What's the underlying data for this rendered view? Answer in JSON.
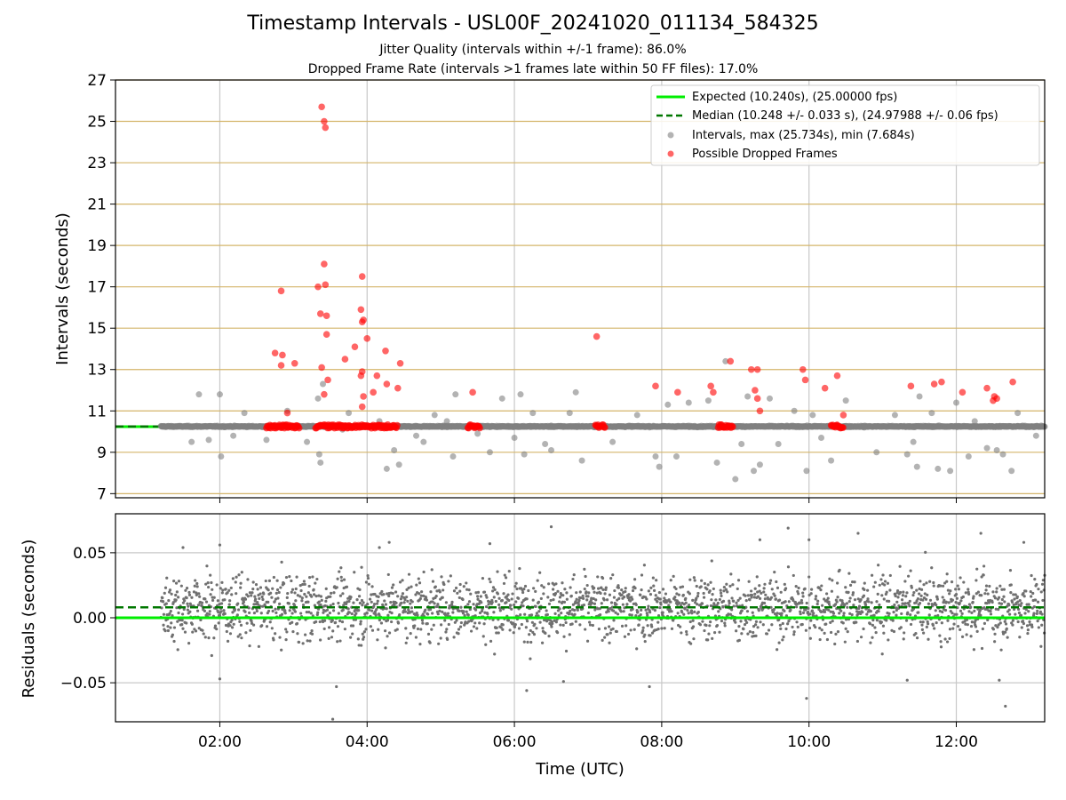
{
  "title": "Timestamp Intervals - USL00F_20241020_011134_584325",
  "subtitle_1": "Jitter Quality (intervals within +/-1 frame): 86.0%",
  "subtitle_2": "Dropped Frame Rate (intervals >1 frames late within 50 FF files): 17.0%",
  "colors": {
    "expected": "#00ee00",
    "median": "#007700",
    "intervals": "#808080",
    "dropped": "#ff0000",
    "hgrid_top": "#d4b56a",
    "vgrid": "#c8c8c8"
  },
  "chart_data": [
    {
      "type": "scatter",
      "ylabel": "Intervals (seconds)",
      "xlabel": "",
      "xlim": [
        "00:35",
        "13:12"
      ],
      "ylim": [
        6.8,
        27
      ],
      "yticks": [
        7,
        9,
        11,
        13,
        15,
        17,
        19,
        21,
        23,
        25,
        27
      ],
      "xticks": [
        "02:00",
        "04:00",
        "06:00",
        "08:00",
        "10:00",
        "12:00"
      ],
      "grid": "on",
      "legend_position": "top-right",
      "legend": [
        "Expected (10.240s), (25.00000 fps)",
        "Median (10.248 +/- 0.033 s), (24.97988 +/- 0.06 fps)",
        "Intervals, max (25.734s), min (7.684s)",
        "Possible Dropped Frames"
      ],
      "expected": 10.24,
      "median": 10.248,
      "series": [
        {
          "name": "Intervals, max (25.734s), min (7.684s)",
          "points": [
            [
              "01:43",
              11.8
            ],
            [
              "01:37",
              9.5
            ],
            [
              "01:51",
              9.6
            ],
            [
              "02:00",
              11.8
            ],
            [
              "02:01",
              8.8
            ],
            [
              "02:11",
              9.8
            ],
            [
              "02:20",
              10.9
            ],
            [
              "02:38",
              9.6
            ],
            [
              "02:55",
              11.0
            ],
            [
              "03:11",
              9.5
            ],
            [
              "03:20",
              11.6
            ],
            [
              "03:21",
              8.9
            ],
            [
              "03:22",
              8.5
            ],
            [
              "03:24",
              12.3
            ],
            [
              "03:40",
              10.1
            ],
            [
              "03:45",
              10.9
            ],
            [
              "04:10",
              10.5
            ],
            [
              "04:16",
              8.2
            ],
            [
              "04:22",
              9.1
            ],
            [
              "04:26",
              8.4
            ],
            [
              "04:40",
              9.8
            ],
            [
              "04:46",
              9.5
            ],
            [
              "04:55",
              10.8
            ],
            [
              "05:05",
              10.5
            ],
            [
              "05:10",
              8.8
            ],
            [
              "05:12",
              11.8
            ],
            [
              "05:30",
              9.9
            ],
            [
              "05:40",
              9.0
            ],
            [
              "05:50",
              11.6
            ],
            [
              "06:00",
              9.7
            ],
            [
              "06:05",
              11.8
            ],
            [
              "06:08",
              8.9
            ],
            [
              "06:15",
              10.9
            ],
            [
              "06:25",
              9.4
            ],
            [
              "06:30",
              9.1
            ],
            [
              "06:45",
              10.9
            ],
            [
              "06:50",
              11.9
            ],
            [
              "06:55",
              8.6
            ],
            [
              "07:20",
              9.5
            ],
            [
              "07:40",
              10.8
            ],
            [
              "07:55",
              8.8
            ],
            [
              "07:58",
              8.3
            ],
            [
              "08:05",
              11.3
            ],
            [
              "08:12",
              8.8
            ],
            [
              "08:22",
              11.4
            ],
            [
              "08:38",
              11.5
            ],
            [
              "08:45",
              8.5
            ],
            [
              "08:52",
              13.4
            ],
            [
              "09:00",
              7.7
            ],
            [
              "09:05",
              9.4
            ],
            [
              "09:10",
              11.7
            ],
            [
              "09:15",
              8.1
            ],
            [
              "09:20",
              8.4
            ],
            [
              "09:28",
              11.6
            ],
            [
              "09:35",
              9.4
            ],
            [
              "09:48",
              11.0
            ],
            [
              "09:58",
              8.1
            ],
            [
              "10:03",
              10.8
            ],
            [
              "10:10",
              9.7
            ],
            [
              "10:18",
              8.6
            ],
            [
              "10:30",
              11.5
            ],
            [
              "10:45",
              10.2
            ],
            [
              "10:55",
              9.0
            ],
            [
              "11:10",
              10.8
            ],
            [
              "11:20",
              8.9
            ],
            [
              "11:25",
              9.5
            ],
            [
              "11:28",
              8.3
            ],
            [
              "11:30",
              11.7
            ],
            [
              "11:40",
              10.9
            ],
            [
              "11:45",
              8.2
            ],
            [
              "11:55",
              8.1
            ],
            [
              "12:00",
              11.4
            ],
            [
              "12:10",
              8.8
            ],
            [
              "12:15",
              10.5
            ],
            [
              "12:25",
              9.2
            ],
            [
              "12:33",
              9.1
            ],
            [
              "12:38",
              8.9
            ],
            [
              "12:45",
              8.1
            ],
            [
              "12:50",
              10.9
            ],
            [
              "13:05",
              9.8
            ]
          ]
        },
        {
          "name": "Possible Dropped Frames",
          "points": [
            [
              "02:50",
              16.8
            ],
            [
              "02:45",
              13.8
            ],
            [
              "02:51",
              13.7
            ],
            [
              "02:50",
              13.2
            ],
            [
              "02:55",
              10.9
            ],
            [
              "03:01",
              13.3
            ],
            [
              "03:20",
              17.0
            ],
            [
              "03:22",
              15.7
            ],
            [
              "03:23",
              25.7
            ],
            [
              "03:25",
              25.0
            ],
            [
              "03:26",
              24.7
            ],
            [
              "03:25",
              18.1
            ],
            [
              "03:26",
              17.1
            ],
            [
              "03:27",
              15.6
            ],
            [
              "03:27",
              14.7
            ],
            [
              "03:28",
              12.5
            ],
            [
              "03:23",
              13.1
            ],
            [
              "03:25",
              11.8
            ],
            [
              "03:42",
              13.5
            ],
            [
              "03:50",
              14.1
            ],
            [
              "03:55",
              15.9
            ],
            [
              "03:57",
              15.4
            ],
            [
              "03:56",
              15.3
            ],
            [
              "03:56",
              17.5
            ],
            [
              "03:55",
              12.7
            ],
            [
              "03:56",
              12.9
            ],
            [
              "03:57",
              11.7
            ],
            [
              "03:56",
              11.2
            ],
            [
              "04:00",
              14.5
            ],
            [
              "04:05",
              11.9
            ],
            [
              "04:08",
              12.7
            ],
            [
              "04:15",
              13.9
            ],
            [
              "04:16",
              12.3
            ],
            [
              "04:25",
              12.1
            ],
            [
              "04:27",
              13.3
            ],
            [
              "05:26",
              11.9
            ],
            [
              "07:07",
              14.6
            ],
            [
              "07:55",
              12.2
            ],
            [
              "08:13",
              11.9
            ],
            [
              "08:40",
              12.2
            ],
            [
              "08:42",
              11.9
            ],
            [
              "08:56",
              13.4
            ],
            [
              "09:13",
              13.0
            ],
            [
              "09:18",
              13.0
            ],
            [
              "09:16",
              12.0
            ],
            [
              "09:18",
              11.6
            ],
            [
              "09:20",
              11.0
            ],
            [
              "09:55",
              13.0
            ],
            [
              "09:57",
              12.5
            ],
            [
              "10:13",
              12.1
            ],
            [
              "10:23",
              12.7
            ],
            [
              "10:28",
              10.8
            ],
            [
              "11:23",
              12.2
            ],
            [
              "11:42",
              12.3
            ],
            [
              "11:48",
              12.4
            ],
            [
              "12:05",
              11.9
            ],
            [
              "12:25",
              12.1
            ],
            [
              "12:30",
              11.5
            ],
            [
              "12:31",
              11.7
            ],
            [
              "12:33",
              11.6
            ],
            [
              "12:46",
              12.4
            ]
          ],
          "baseline_clusters": [
            [
              "02:38",
              "03:05",
              10.25
            ],
            [
              "03:18",
              "04:25",
              10.25
            ],
            [
              "05:22",
              "05:32",
              10.25
            ],
            [
              "07:06",
              "07:14",
              10.25
            ],
            [
              "08:46",
              "08:58",
              10.25
            ],
            [
              "10:18",
              "10:28",
              10.25
            ]
          ]
        }
      ]
    },
    {
      "type": "scatter",
      "ylabel": "Residuals (seconds)",
      "xlabel": "Time (UTC)",
      "xlim": [
        "00:35",
        "13:12"
      ],
      "ylim": [
        -0.08,
        0.08
      ],
      "yticks": [
        -0.05,
        0.0,
        0.05
      ],
      "ytick_labels": [
        "−0.05",
        "0.00",
        "0.05"
      ],
      "xticks": [
        "02:00",
        "04:00",
        "06:00",
        "08:00",
        "10:00",
        "12:00"
      ],
      "grid": "on",
      "expected": 0.0,
      "median": 0.008,
      "residual_spread": 0.025,
      "outliers": [
        [
          "01:30",
          0.054
        ],
        [
          "02:00",
          0.056
        ],
        [
          "02:00",
          -0.047
        ],
        [
          "03:35",
          -0.053
        ],
        [
          "03:32",
          -0.078
        ],
        [
          "04:10",
          0.054
        ],
        [
          "04:18",
          0.058
        ],
        [
          "05:40",
          0.057
        ],
        [
          "06:10",
          -0.056
        ],
        [
          "06:30",
          0.07
        ],
        [
          "06:40",
          -0.049
        ],
        [
          "07:50",
          -0.053
        ],
        [
          "09:20",
          0.06
        ],
        [
          "09:43",
          0.069
        ],
        [
          "09:58",
          -0.062
        ],
        [
          "10:00",
          0.06
        ],
        [
          "10:40",
          0.065
        ],
        [
          "11:20",
          -0.048
        ],
        [
          "12:20",
          0.065
        ],
        [
          "12:40",
          -0.068
        ],
        [
          "12:35",
          -0.048
        ],
        [
          "12:55",
          0.058
        ]
      ]
    }
  ]
}
